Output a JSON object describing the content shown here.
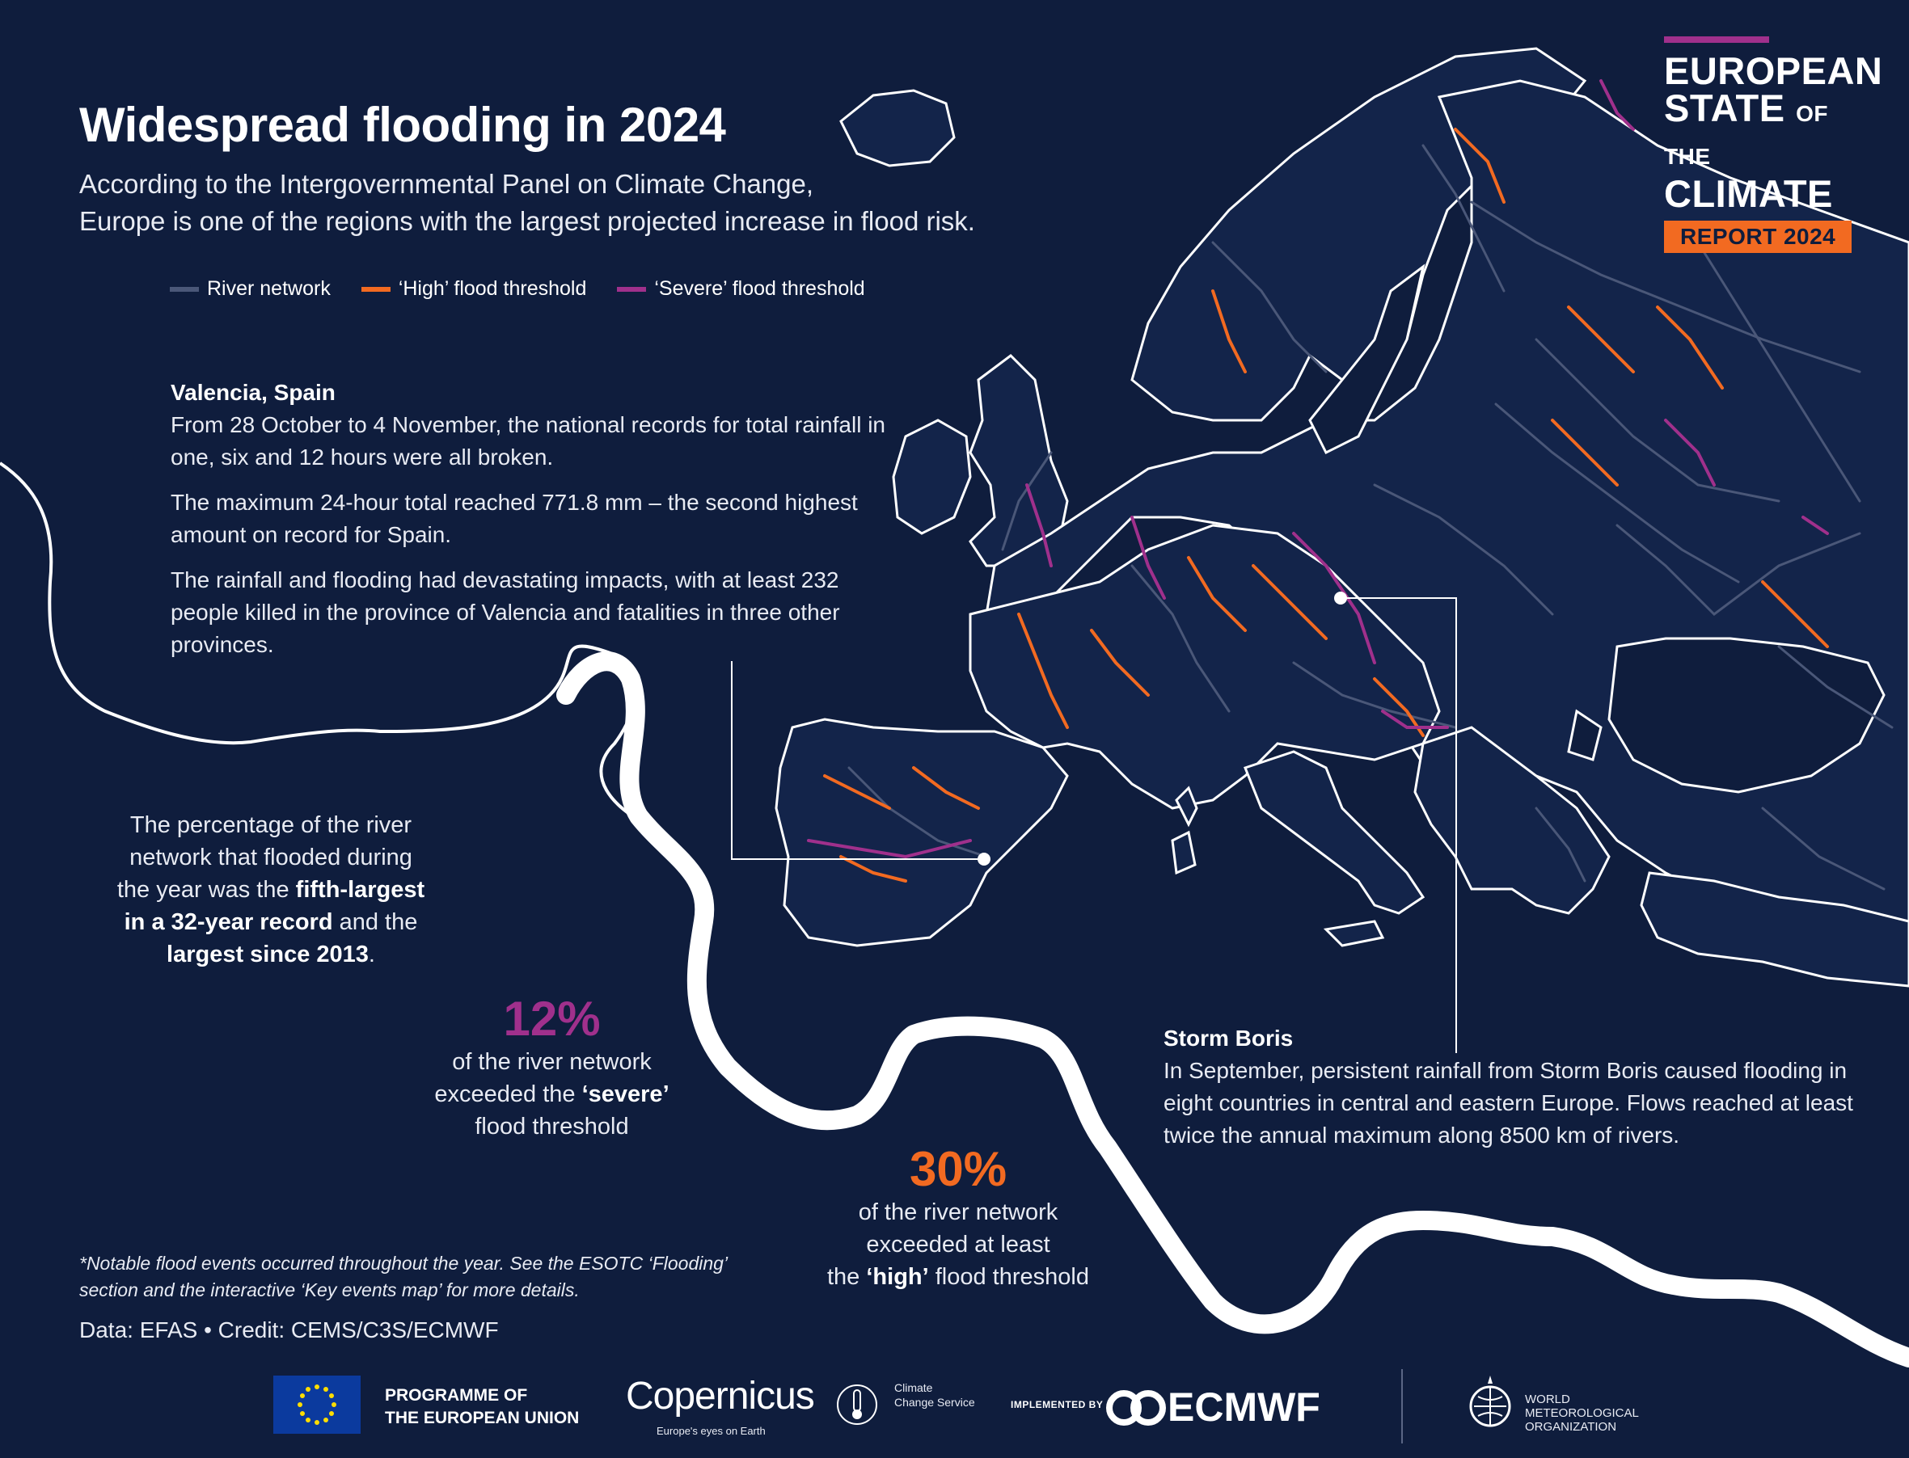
{
  "title": "Widespread flooding in 2024",
  "subtitle": [
    "According to the Intergovernmental Panel on Climate Change,",
    "Europe is one of the regions with the largest projected increase in flood risk."
  ],
  "legend": [
    {
      "label": "River network",
      "color": "#4a5778"
    },
    {
      "label": "‘High’ flood threshold",
      "color": "#f26a21"
    },
    {
      "label": "‘Severe’ flood threshold",
      "color": "#a0308c"
    }
  ],
  "valencia": {
    "heading": "Valencia, Spain",
    "paragraphs": [
      "From 28 October to 4 November, the national records for total rainfall in one, six and 12 hours were all broken.",
      "The maximum 24-hour total reached 771.8 mm – the second highest amount on record for Spain.",
      "The rainfall and flooding had devastating impacts, with at least 232 people killed in the province of Valencia and fatalities in three other provinces."
    ]
  },
  "percentage_text": {
    "part1": "The percentage of the river network that flooded during the year was the ",
    "bold1": "fifth-largest in a 32-year record",
    "part2": " and the ",
    "bold2": "largest since 2013",
    "part3": "."
  },
  "stat_severe": {
    "value": "12%",
    "color": "#a0308c",
    "line1": "of the river network",
    "line2_pre": "exceeded the ",
    "line2_bold": "‘severe’",
    "line3": "flood threshold"
  },
  "stat_high": {
    "value": "30%",
    "color": "#f26a21",
    "line1": "of the river network",
    "line2": "exceeded at least",
    "line3_pre": "the ",
    "line3_bold": "‘high’",
    "line3_post": " flood threshold"
  },
  "storm_boris": {
    "heading": "Storm Boris",
    "text": "In September, persistent rainfall from Storm Boris caused flooding in eight countries in central and eastern Europe. Flows reached at least twice the annual maximum along 8500 km of rivers."
  },
  "note": "*Notable flood events occurred throughout the year. See the ESOTC ‘Flooding’ section and the interactive ‘Key events map’ for more details.",
  "credit": "Data: EFAS • Credit: CEMS/C3S/ECMWF",
  "report_badge": {
    "line1": "EUROPEAN",
    "line2": "STATE",
    "line2_small": "OF THE",
    "line3": "CLIMATE",
    "badge": "REPORT 2024"
  },
  "footer": {
    "eu": [
      "PROGRAMME OF",
      "THE EUROPEAN UNION"
    ],
    "copernicus": "Copernicus",
    "copernicus_tagline": "Europe's eyes on Earth",
    "c3s": [
      "Climate",
      "Change Service"
    ],
    "implemented_by": "IMPLEMENTED BY",
    "ecmwf": "ECMWF",
    "wmo": [
      "WORLD",
      "METEOROLOGICAL",
      "ORGANIZATION"
    ]
  },
  "colors": {
    "background": "#0f1d3d",
    "river": "#4a5778",
    "high": "#f26a21",
    "severe": "#a0308c",
    "coast": "#ffffff"
  }
}
